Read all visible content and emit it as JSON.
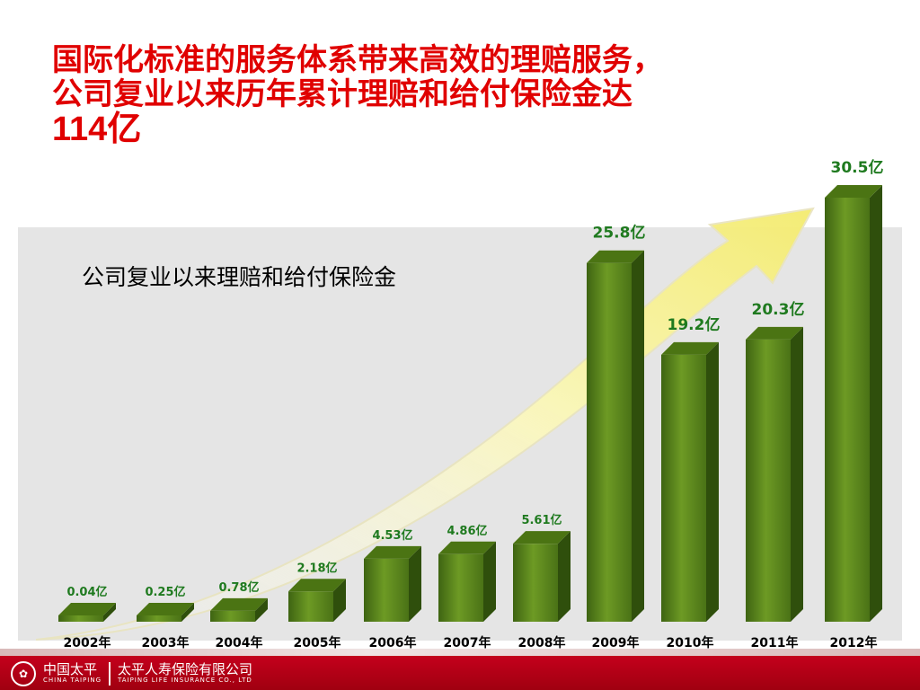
{
  "title": {
    "line1": "国际化标准的服务体系带来高效的理赔服务，",
    "line2": "公司复业以来历年累计理赔和给付保险金达",
    "total_value": "114",
    "total_unit": "亿"
  },
  "footer": {
    "brand_cn": "中国太平",
    "brand_en": "CHINA TAIPING",
    "company_cn": "太平人寿保险有限公司",
    "company_en": "TAIPING LIFE INSURANCE CO., LTD"
  },
  "chart_data": {
    "type": "bar",
    "title": "公司复业以来理赔和给付保险金",
    "categories": [
      "2002年",
      "2003年",
      "2004年",
      "2005年",
      "2006年",
      "2007年",
      "2008年",
      "2009年",
      "2010年",
      "2011年",
      "2012年"
    ],
    "values": [
      0.04,
      0.25,
      0.78,
      2.18,
      4.53,
      4.86,
      5.61,
      25.8,
      19.2,
      20.3,
      30.5
    ],
    "value_labels": [
      "0.04亿",
      "0.25亿",
      "0.78亿",
      "2.18亿",
      "4.53亿",
      "4.86亿",
      "5.61亿",
      "25.8亿",
      "19.2亿",
      "20.3亿",
      "30.5亿"
    ],
    "unit": "亿",
    "bar_color": "#5f8a1e",
    "label_color": "#1f7a1f",
    "ylim": [
      0,
      30.5
    ],
    "grid": false
  }
}
